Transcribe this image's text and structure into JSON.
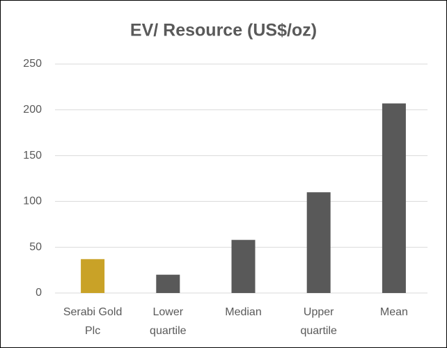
{
  "chart_data": {
    "type": "bar",
    "title": "EV/ Resource (US$/oz)",
    "categories": [
      "Serabi Gold Plc",
      "Lower quartile",
      "Median",
      "Upper quartile",
      "Mean"
    ],
    "values": [
      37,
      20,
      58,
      110,
      207
    ],
    "colors": [
      "#c9a227",
      "#595959",
      "#595959",
      "#595959",
      "#595959"
    ],
    "ylim": [
      0,
      250
    ],
    "yticks": [
      0,
      50,
      100,
      150,
      200,
      250
    ],
    "grid": true
  }
}
